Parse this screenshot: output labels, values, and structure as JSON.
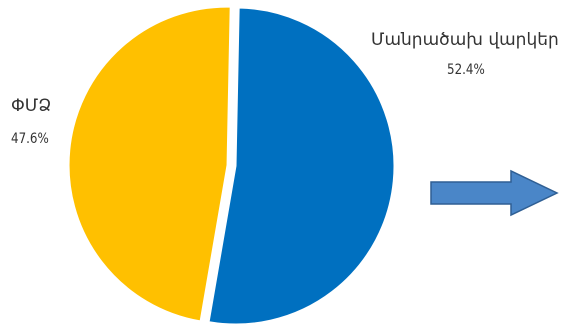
{
  "chart_data": {
    "type": "pie",
    "title": "",
    "slices": [
      {
        "label": "Մանրածախ վարկեր",
        "value": 52.4,
        "value_label": "52.4%",
        "color": "#0070c0",
        "exploded": false
      },
      {
        "label": "ՓՄՁ",
        "value": 47.6,
        "value_label": "47.6%",
        "color": "#ffc000",
        "exploded": true
      }
    ],
    "legend": "none",
    "start": "top",
    "direction": "clockwise"
  },
  "decorations": {
    "arrow": {
      "icon": "right-arrow-icon",
      "fill": "#4a86c8",
      "stroke": "#2f5f94"
    }
  }
}
